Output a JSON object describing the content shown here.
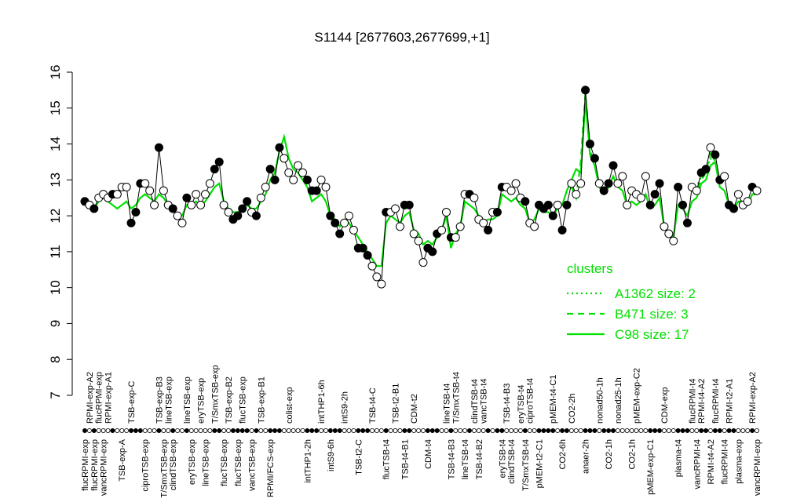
{
  "chart_data": {
    "type": "line",
    "title": "S1144 [2677603,2677699,+1]",
    "ylim": [
      7,
      16
    ],
    "yticks": [
      7,
      8,
      9,
      10,
      11,
      12,
      13,
      14,
      15,
      16
    ],
    "line_color": "#000000",
    "legend_title": "clusters",
    "categories": [
      "flucRPMI-exp",
      "RPMI-exp-A2",
      "flucRPMI-exp",
      "flucRPMI-exp",
      "vancRPMI-exp",
      "RPMI-exp-A1",
      null,
      null,
      "TSB-exp-A",
      null,
      "TSB-exp-C",
      null,
      null,
      "ciproTSB-exp",
      null,
      null,
      "TSB-exp-B3",
      "T/SmxTSB-exp",
      "lineTSB-exp",
      "clindTSB-exp",
      null,
      null,
      "lineTSB-exp",
      "eryTSB-exp",
      null,
      "eryTSB-exp",
      "lineTSB-exp",
      null,
      "T/SmxTSB-exp",
      null,
      "flucTSB-exp",
      "TSB-exp-B2",
      null,
      "flucTSB-exp",
      "flucTSB-exp",
      null,
      "vancTSB-exp",
      null,
      "TSB-exp-B1",
      null,
      "RPMI/FCS-exp",
      null,
      null,
      null,
      "colist-exp",
      null,
      null,
      null,
      "intTHP1-2h",
      null,
      null,
      "intTHP1-6h",
      null,
      "intS9-6h",
      null,
      null,
      "intS9-2h",
      null,
      null,
      "TSB-t2-C",
      null,
      null,
      "TSB-t4-C",
      null,
      null,
      "flucTSB-t4",
      null,
      "TSB-t2-B1",
      null,
      "TSB-t4-B1",
      null,
      "CDM-t2",
      null,
      null,
      "CDM-t4",
      null,
      null,
      null,
      "lineTSB-t4",
      "TSB-t4-B3",
      "T/SmxTSB-t4",
      null,
      "lineTSB-t4",
      null,
      "clindTSB-t4",
      "TSB-t4-B2",
      "vancTSB-t4",
      null,
      null,
      null,
      "eryTSB-t4",
      "TSB-t4-B3",
      "clindTSB-t4",
      null,
      "eryTSB-t4",
      "T/SmxTSB-t4",
      "ciproTSB-t4",
      null,
      "pMEM-t2-C1",
      null,
      null,
      "pMEM-t4-C1",
      null,
      "CO2-6h",
      null,
      "CO2-2h",
      null,
      null,
      "anaer-2h",
      null,
      null,
      "nonad50-1h",
      null,
      "CO2-1h",
      null,
      "nonad25-1h",
      null,
      null,
      "CO2-1h",
      "pMEM-exp-C2",
      null,
      null,
      "pMEM-exp-C1",
      null,
      null,
      "CDM-exp",
      null,
      null,
      "plasma-t4",
      null,
      null,
      "flucRPMI-t4",
      "vancRPMI-t4",
      "RPMI-t4-A2",
      null,
      "RPMI-t4-A2",
      "flucRPMI-t4",
      null,
      "flucRPMI-t4",
      "RPMI-t2-A1",
      null,
      "plasma-exp",
      null,
      null,
      "RPMI-exp-A2",
      "vancRPMI-exp"
    ],
    "values": [
      12.4,
      12.3,
      12.2,
      12.5,
      12.6,
      12.5,
      12.6,
      12.6,
      12.8,
      12.8,
      11.8,
      12.1,
      12.9,
      12.9,
      12.7,
      12.3,
      13.9,
      12.7,
      12.3,
      12.2,
      12.0,
      11.8,
      12.5,
      12.3,
      12.6,
      12.3,
      12.6,
      12.9,
      13.3,
      13.5,
      12.3,
      12.1,
      11.9,
      12.0,
      12.2,
      12.4,
      12.1,
      12.0,
      12.5,
      12.8,
      13.3,
      13.0,
      13.9,
      13.6,
      13.2,
      13.0,
      13.4,
      13.2,
      13.0,
      12.7,
      12.7,
      13.0,
      12.8,
      12.0,
      11.8,
      11.5,
      11.8,
      12.0,
      11.6,
      11.1,
      11.1,
      10.9,
      10.6,
      10.3,
      10.1,
      12.1,
      12.1,
      12.2,
      11.7,
      12.3,
      12.3,
      11.5,
      11.3,
      10.7,
      11.1,
      11.0,
      11.5,
      11.6,
      12.1,
      11.4,
      11.4,
      11.7,
      12.6,
      12.6,
      12.5,
      11.9,
      11.8,
      11.6,
      12.1,
      12.1,
      12.8,
      12.8,
      12.7,
      12.9,
      12.5,
      12.4,
      11.8,
      11.7,
      12.3,
      12.2,
      12.3,
      12.0,
      12.3,
      11.6,
      12.3,
      12.9,
      12.6,
      12.9,
      15.5,
      14.0,
      13.6,
      12.9,
      12.7,
      12.9,
      13.4,
      12.9,
      13.1,
      12.3,
      12.7,
      12.6,
      12.5,
      13.1,
      12.3,
      12.6,
      12.9,
      11.7,
      11.5,
      11.3,
      12.8,
      12.3,
      11.8,
      12.8,
      12.7,
      13.2,
      13.3,
      13.9,
      13.7,
      13.0,
      13.1,
      12.3,
      12.2,
      12.6,
      12.3,
      12.4,
      12.8,
      12.7
    ],
    "marker_colors": [
      "#000",
      "#fff",
      "#000",
      "#fff",
      "#fff",
      "#fff",
      "#000",
      "#fff",
      "#fff",
      "#fff",
      "#000",
      "#000",
      "#000",
      "#fff",
      "#fff",
      "#fff",
      "#000",
      "#fff",
      "#fff",
      "#000",
      "#fff",
      "#fff",
      "#000",
      "#fff",
      "#fff",
      "#fff",
      "#fff",
      "#fff",
      "#000",
      "#000",
      "#fff",
      "#fff",
      "#000",
      "#000",
      "#000",
      "#000",
      "#fff",
      "#000",
      "#fff",
      "#fff",
      "#000",
      "#000",
      "#000",
      "#fff",
      "#fff",
      "#fff",
      "#fff",
      "#fff",
      "#000",
      "#000",
      "#000",
      "#fff",
      "#fff",
      "#000",
      "#000",
      "#000",
      "#fff",
      "#fff",
      "#fff",
      "#000",
      "#000",
      "#000",
      "#fff",
      "#fff",
      "#fff",
      "#000",
      "#fff",
      "#fff",
      "#fff",
      "#000",
      "#000",
      "#fff",
      "#fff",
      "#fff",
      "#000",
      "#000",
      "#000",
      "#fff",
      "#fff",
      "#000",
      "#fff",
      "#fff",
      "#fff",
      "#000",
      "#fff",
      "#fff",
      "#fff",
      "#000",
      "#fff",
      "#000",
      "#000",
      "#fff",
      "#fff",
      "#fff",
      "#fff",
      "#000",
      "#fff",
      "#fff",
      "#000",
      "#000",
      "#000",
      "#000",
      "#fff",
      "#000",
      "#000",
      "#fff",
      "#fff",
      "#fff",
      "#000",
      "#000",
      "#000",
      "#fff",
      "#000",
      "#000",
      "#000",
      "#fff",
      "#fff",
      "#fff",
      "#fff",
      "#fff",
      "#fff",
      "#fff",
      "#000",
      "#000",
      "#000",
      "#fff",
      "#fff",
      "#fff",
      "#000",
      "#000",
      "#000",
      "#fff",
      "#fff",
      "#000",
      "#000",
      "#fff",
      "#000",
      "#000",
      "#fff",
      "#000",
      "#000",
      "#fff",
      "#fff",
      "#fff",
      "#000",
      "#fff"
    ],
    "series": [
      {
        "name": "A1362 size: 2",
        "color": "#00e000",
        "dash": "2,4",
        "values": [
          null,
          null,
          null,
          null,
          null,
          null,
          null,
          null,
          null,
          null,
          null,
          null,
          null,
          null,
          null,
          null,
          null,
          null,
          null,
          null,
          null,
          null,
          null,
          null,
          null,
          null,
          null,
          null,
          null,
          null,
          null,
          null,
          null,
          null,
          null,
          null,
          null,
          null,
          null,
          null,
          null,
          null,
          null,
          null,
          null,
          null,
          null,
          null,
          null,
          null,
          null,
          null,
          null,
          null,
          null,
          null,
          null,
          null,
          null,
          null,
          null,
          null,
          null,
          null,
          null,
          null,
          null,
          null,
          null,
          null,
          null,
          null,
          null,
          null,
          null,
          null,
          null,
          null,
          null,
          null,
          null,
          null,
          null,
          null,
          null,
          null,
          null,
          null,
          null,
          null,
          null,
          null,
          null,
          null,
          null,
          null,
          null,
          null,
          null,
          null,
          null,
          null,
          null,
          null,
          null,
          null,
          null,
          null,
          null,
          null,
          null,
          null,
          null,
          null,
          null,
          null,
          null,
          null,
          null,
          null,
          null,
          null,
          null,
          null,
          null,
          null,
          null,
          null,
          null,
          null,
          null,
          12.7,
          12.8,
          13.1,
          13.3,
          13.6,
          13.4,
          null,
          null,
          null,
          null,
          12.4,
          12.2,
          12.3,
          null,
          null
        ]
      },
      {
        "name": "B471 size: 3",
        "color": "#00e000",
        "dash": "8,6",
        "values": [
          null,
          null,
          null,
          null,
          null,
          null,
          null,
          null,
          null,
          null,
          null,
          null,
          null,
          null,
          null,
          null,
          null,
          null,
          null,
          null,
          null,
          null,
          null,
          null,
          null,
          null,
          null,
          null,
          null,
          null,
          null,
          null,
          null,
          null,
          null,
          null,
          null,
          null,
          null,
          null,
          null,
          null,
          null,
          null,
          null,
          null,
          null,
          null,
          null,
          null,
          null,
          null,
          null,
          null,
          null,
          null,
          null,
          null,
          null,
          null,
          null,
          null,
          null,
          null,
          null,
          null,
          null,
          null,
          null,
          null,
          null,
          null,
          null,
          null,
          null,
          null,
          null,
          null,
          null,
          null,
          null,
          null,
          null,
          null,
          null,
          null,
          null,
          null,
          null,
          null,
          null,
          null,
          null,
          null,
          null,
          null,
          null,
          null,
          null,
          null,
          null,
          null,
          null,
          null,
          null,
          12.8,
          12.5,
          13.5,
          15.4,
          13.8,
          13.5,
          null,
          null,
          null,
          null,
          null,
          null,
          null,
          null,
          null,
          null,
          null,
          null,
          null,
          null,
          null,
          null,
          null,
          null,
          null,
          null,
          12.9,
          12.7,
          13.0,
          13.2,
          13.8,
          13.5,
          null,
          null,
          null,
          null,
          null,
          null,
          null,
          null,
          null
        ]
      },
      {
        "name": "C98 size: 17",
        "color": "#00e000",
        "dash": "none",
        "values": [
          12.5,
          12.3,
          12.2,
          12.4,
          12.5,
          12.4,
          12.3,
          12.2,
          12.3,
          12.4,
          12.2,
          12.3,
          12.5,
          12.6,
          12.5,
          12.4,
          12.6,
          12.5,
          12.3,
          12.2,
          12.0,
          12.0,
          12.3,
          12.3,
          12.4,
          12.3,
          12.4,
          12.6,
          12.8,
          12.9,
          12.4,
          12.2,
          12.1,
          12.1,
          12.2,
          12.3,
          12.2,
          12.2,
          12.4,
          12.6,
          13.0,
          13.2,
          13.8,
          14.2,
          13.6,
          13.3,
          13.2,
          13.0,
          12.8,
          12.4,
          12.5,
          12.6,
          12.4,
          12.0,
          11.9,
          11.7,
          11.9,
          11.8,
          11.6,
          11.4,
          11.2,
          11.0,
          10.8,
          10.6,
          10.6,
          11.8,
          12.0,
          11.9,
          11.8,
          12.0,
          12.1,
          11.6,
          11.5,
          11.2,
          11.3,
          11.2,
          11.4,
          11.6,
          12.0,
          11.1,
          11.5,
          11.7,
          12.4,
          12.3,
          12.2,
          12.0,
          11.8,
          11.9,
          11.9,
          12.0,
          12.6,
          12.5,
          12.4,
          12.5,
          12.3,
          12.2,
          11.8,
          11.9,
          12.2,
          12.1,
          12.1,
          12.0,
          12.2,
          12.3,
          12.7,
          13.0,
          13.3,
          13.2,
          15.2,
          13.7,
          13.4,
          12.8,
          12.6,
          12.8,
          13.1,
          12.8,
          12.7,
          12.3,
          12.4,
          12.3,
          12.4,
          12.6,
          12.2,
          12.3,
          12.5,
          11.7,
          11.5,
          11.4,
          12.3,
          12.2,
          12.0,
          12.4,
          12.5,
          12.9,
          13.0,
          13.4,
          13.5,
          12.8,
          12.7,
          12.3,
          12.2,
          12.4,
          12.4,
          12.3,
          12.6,
          12.6
        ]
      }
    ]
  }
}
